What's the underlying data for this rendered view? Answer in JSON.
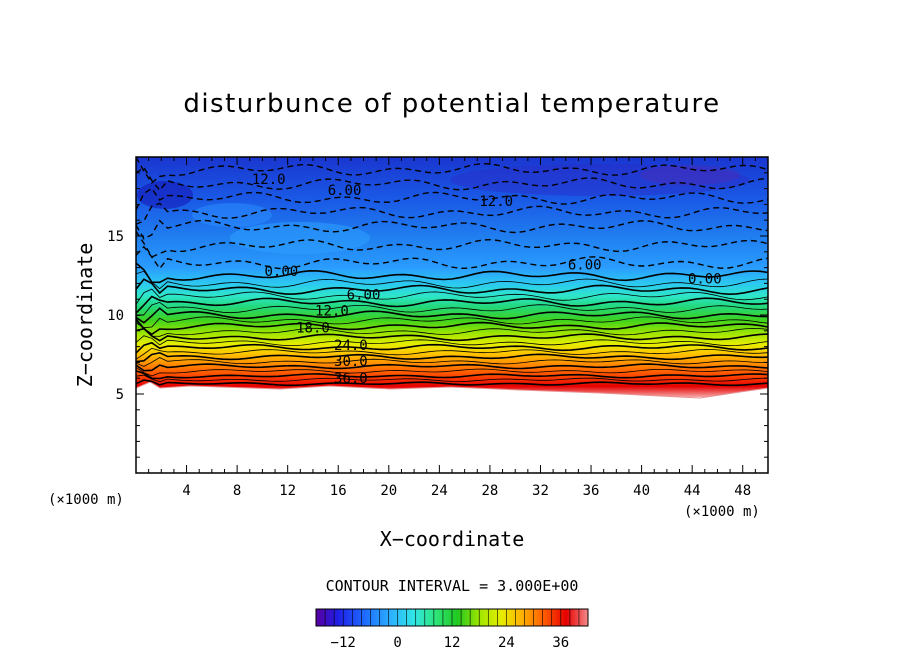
{
  "chart_data": {
    "type": "contour",
    "title": "disturbunce of potential temperature",
    "xlabel": "X−coordinate",
    "ylabel": "Z−coordinate",
    "x_unit_left": "(×1000 m)",
    "x_unit_right": "(×1000 m)",
    "xlim": [
      0,
      50
    ],
    "ylim": [
      0,
      20
    ],
    "x_ticks": [
      "4",
      "8",
      "12",
      "16",
      "20",
      "24",
      "28",
      "32",
      "36",
      "40",
      "44",
      "48"
    ],
    "y_ticks": [
      "5",
      "10",
      "15"
    ],
    "contour_interval_text": "CONTOUR INTERVAL = 3.000E+00",
    "contour_interval": 3.0,
    "terrain_top_z": [
      5.5,
      5.3,
      5.4,
      5.6,
      5.5,
      5.3,
      5.5,
      5.6,
      5.4,
      5.5,
      5.6,
      5.4,
      5.3,
      5.0,
      5.1,
      5.4,
      5.6
    ],
    "terrain_x": [
      0,
      1,
      2,
      3,
      6,
      10,
      14,
      18,
      22,
      25,
      30,
      34,
      38,
      42,
      45,
      47,
      50
    ],
    "contour_labels": [
      {
        "text": "12.0",
        "x": 10.5,
        "z": 18.6
      },
      {
        "text": "6.00",
        "x": 16.5,
        "z": 17.9
      },
      {
        "text": "12.0",
        "x": 28.5,
        "z": 17.2
      },
      {
        "text": "6.00",
        "x": 35.5,
        "z": 13.2
      },
      {
        "text": "0.00",
        "x": 11.5,
        "z": 12.8
      },
      {
        "text": "0.00",
        "x": 45.0,
        "z": 12.3
      },
      {
        "text": "6.00",
        "x": 18.0,
        "z": 11.3
      },
      {
        "text": "12.0",
        "x": 15.5,
        "z": 10.3
      },
      {
        "text": "18.0",
        "x": 14.0,
        "z": 9.2
      },
      {
        "text": "24.0",
        "x": 17.0,
        "z": 8.1
      },
      {
        "text": "30.0",
        "x": 17.0,
        "z": 7.1
      },
      {
        "text": "36.0",
        "x": 17.0,
        "z": 6.0
      }
    ],
    "colorbar": {
      "ticks": [
        "−12",
        "0",
        "12",
        "24",
        "36"
      ],
      "values": [
        -12,
        0,
        12,
        24,
        36
      ],
      "range": [
        -18,
        42
      ],
      "colors": [
        "#7a00b8",
        "#1e1ee6",
        "#1e6cff",
        "#2db4ff",
        "#30e6e6",
        "#2ee67a",
        "#20c820",
        "#7ee600",
        "#e6ee00",
        "#ffb000",
        "#ff5a00",
        "#e60000",
        "#f07878"
      ]
    }
  }
}
